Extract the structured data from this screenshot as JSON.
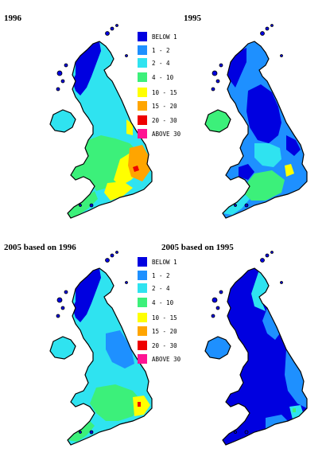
{
  "panels": [
    {
      "title": "1996",
      "regime": "1996"
    },
    {
      "title": "1995",
      "regime": "1995"
    },
    {
      "title": "2005 based on 1996",
      "regime": "p96"
    },
    {
      "title": "2005 based on 1995",
      "regime": "p95"
    }
  ],
  "legend": {
    "items": [
      {
        "label": "BELOW 1",
        "color": "#0000e0"
      },
      {
        "label": "1 -  2",
        "color": "#1e90ff"
      },
      {
        "label": "2 -  4",
        "color": "#2fe3f0"
      },
      {
        "label": "4 -  10",
        "color": "#3cf07a"
      },
      {
        "label": "10 -  15",
        "color": "#ffff00"
      },
      {
        "label": "15 -  20",
        "color": "#ffa500"
      },
      {
        "label": "20 -  30",
        "color": "#ee0000"
      },
      {
        "label": "ABOVE 30",
        "color": "#ff1493"
      }
    ]
  }
}
